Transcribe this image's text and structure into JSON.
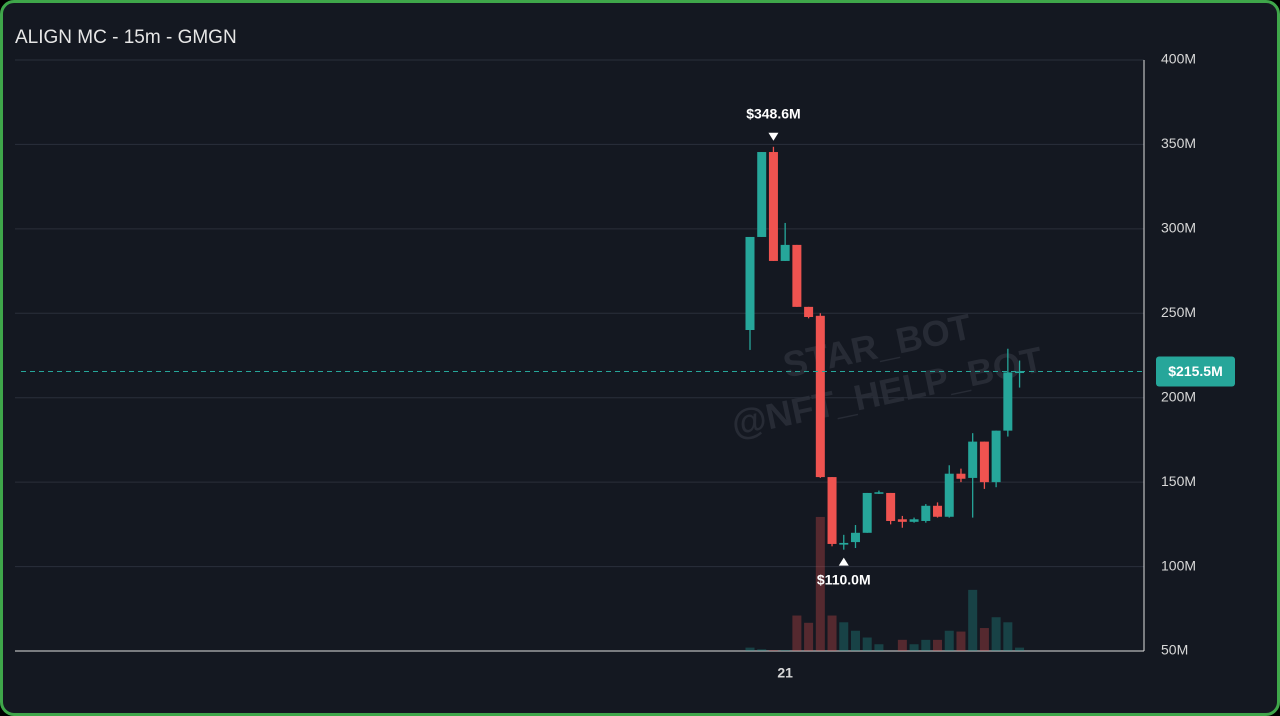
{
  "chart_data": {
    "type": "candlestick",
    "title": "ALIGN MC - 15m - GMGN",
    "watermark": [
      "STAR_BOT",
      "@NFT_HELP_BOT"
    ],
    "categories": [
      null,
      null,
      null,
      "21",
      null,
      null,
      null,
      null,
      null,
      null,
      null,
      null,
      null,
      null,
      null,
      null,
      null,
      null,
      null,
      null,
      null,
      null,
      null,
      null
    ],
    "open": [
      240.1,
      295.2,
      345.5,
      281.0,
      290.5,
      253.8,
      248.5,
      153.0,
      113.0,
      114.5,
      120.0,
      143.5,
      143.6,
      128.0,
      126.5,
      127.0,
      136.0,
      129.5,
      155.0,
      152.5,
      174.0,
      150.0,
      180.5,
      215.0
    ],
    "high": [
      295.2,
      345.5,
      348.6,
      303.5,
      290.5,
      253.8,
      250.0,
      153.0,
      118.8,
      124.6,
      143.6,
      145.0,
      143.6,
      130.0,
      129.0,
      137.0,
      138.0,
      160.0,
      158.0,
      179.0,
      174.0,
      180.5,
      229.0,
      222.0
    ],
    "low": [
      228.3,
      295.2,
      281.0,
      281.0,
      253.8,
      247.0,
      152.5,
      112.0,
      110.0,
      111.0,
      120.0,
      143.0,
      125.0,
      123.0,
      126.0,
      126.0,
      129.0,
      129.0,
      150.0,
      129.0,
      146.0,
      147.0,
      177.0,
      206.0
    ],
    "close": [
      295.2,
      345.5,
      281.0,
      290.5,
      253.8,
      247.8,
      153.0,
      113.4,
      114.0,
      120.0,
      143.6,
      144.0,
      127.0,
      126.5,
      128.0,
      136.0,
      129.5,
      155.0,
      152.0,
      174.0,
      150.0,
      180.5,
      215.0,
      215.5
    ],
    "volume": [
      52.0,
      51.0,
      50.5,
      50.5,
      71.0,
      66.7,
      129.4,
      71.0,
      67.0,
      62.0,
      58.0,
      54.0,
      50.0,
      56.6,
      54.0,
      56.6,
      56.6,
      62.0,
      61.5,
      86.2,
      63.6,
      70.0,
      67.0,
      52.0
    ],
    "up_color": "#26a69a",
    "down_color": "#ef5350",
    "ylim": [
      50,
      400
    ],
    "yticks": [
      {
        "value": 50,
        "label": "50M"
      },
      {
        "value": 100,
        "label": "100M"
      },
      {
        "value": 150,
        "label": "150M"
      },
      {
        "value": 200,
        "label": "200M"
      },
      {
        "value": 250,
        "label": "250M"
      },
      {
        "value": 300,
        "label": "300M"
      },
      {
        "value": 350,
        "label": "350M"
      },
      {
        "value": 400,
        "label": "400M"
      }
    ],
    "grid": true,
    "current_price": {
      "value": 215.5,
      "label": "$215.5M"
    },
    "annotations": [
      {
        "value": 348.6,
        "label": "$348.6M",
        "kind": "high"
      },
      {
        "value": 110.0,
        "label": "$110.0M",
        "kind": "low"
      }
    ]
  }
}
